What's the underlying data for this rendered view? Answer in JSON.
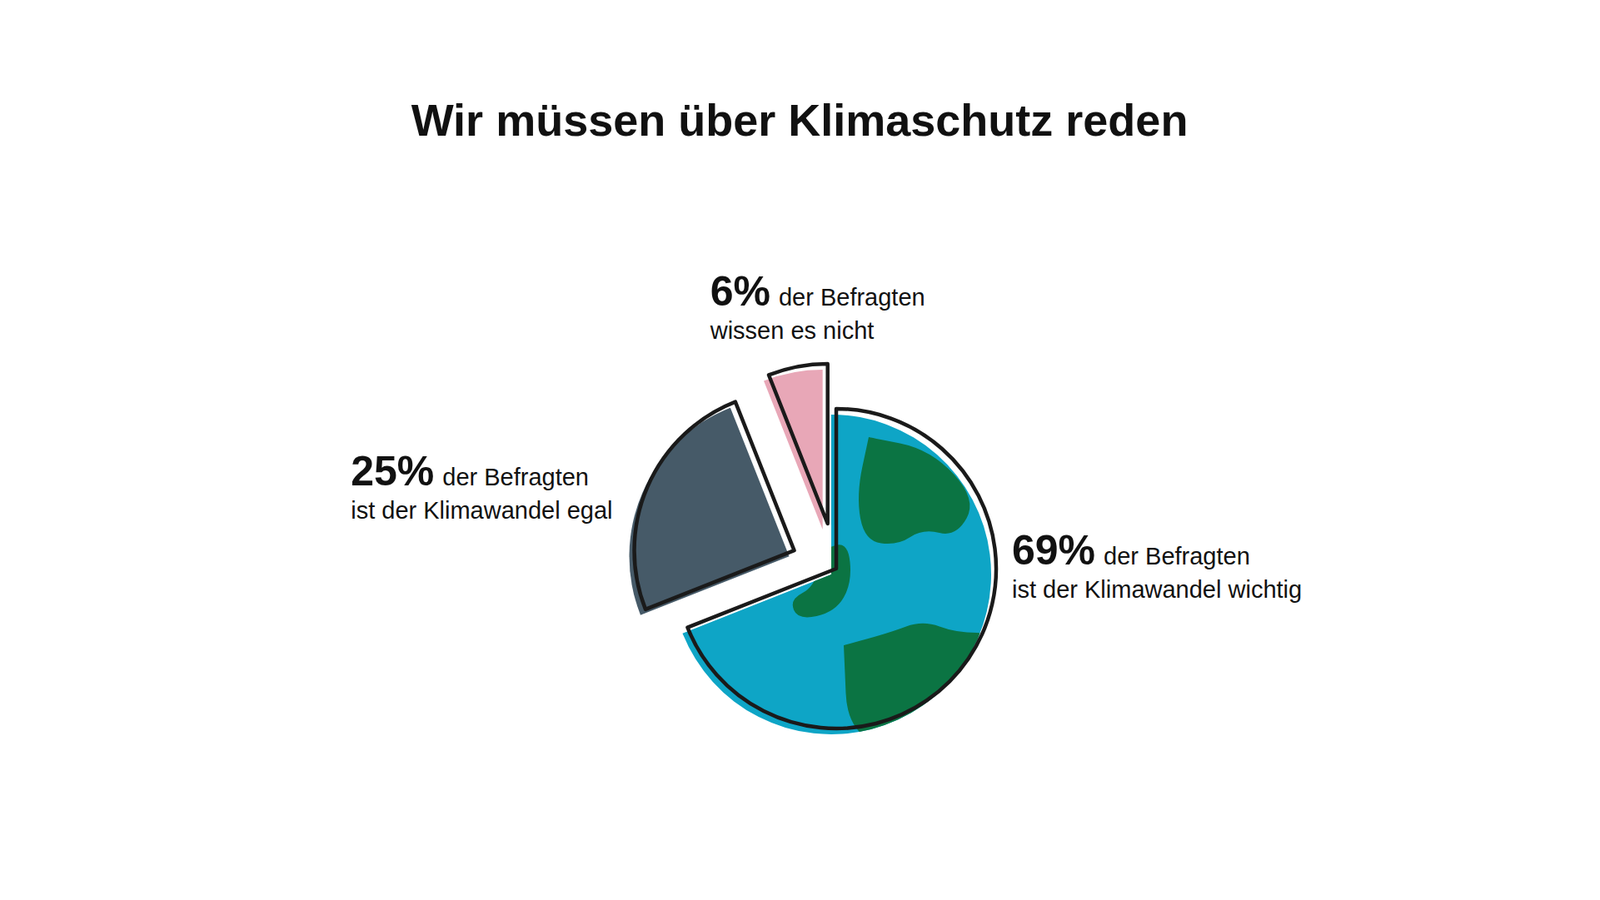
{
  "chart_data": {
    "type": "pie",
    "title": "Wir müssen über Klimaschutz reden",
    "categories": [
      "der Befragten ist der Klimawandel wichtig",
      "der Befragten ist der Klimawandel egal",
      "der Befragten wissen es nicht"
    ],
    "values": [
      69,
      25,
      6
    ],
    "value_labels": [
      "69%",
      "25%",
      "6%"
    ],
    "colors": [
      "#0ea5c6",
      "#465a68",
      "#e8a7b7"
    ],
    "data_labels": true
  }
}
